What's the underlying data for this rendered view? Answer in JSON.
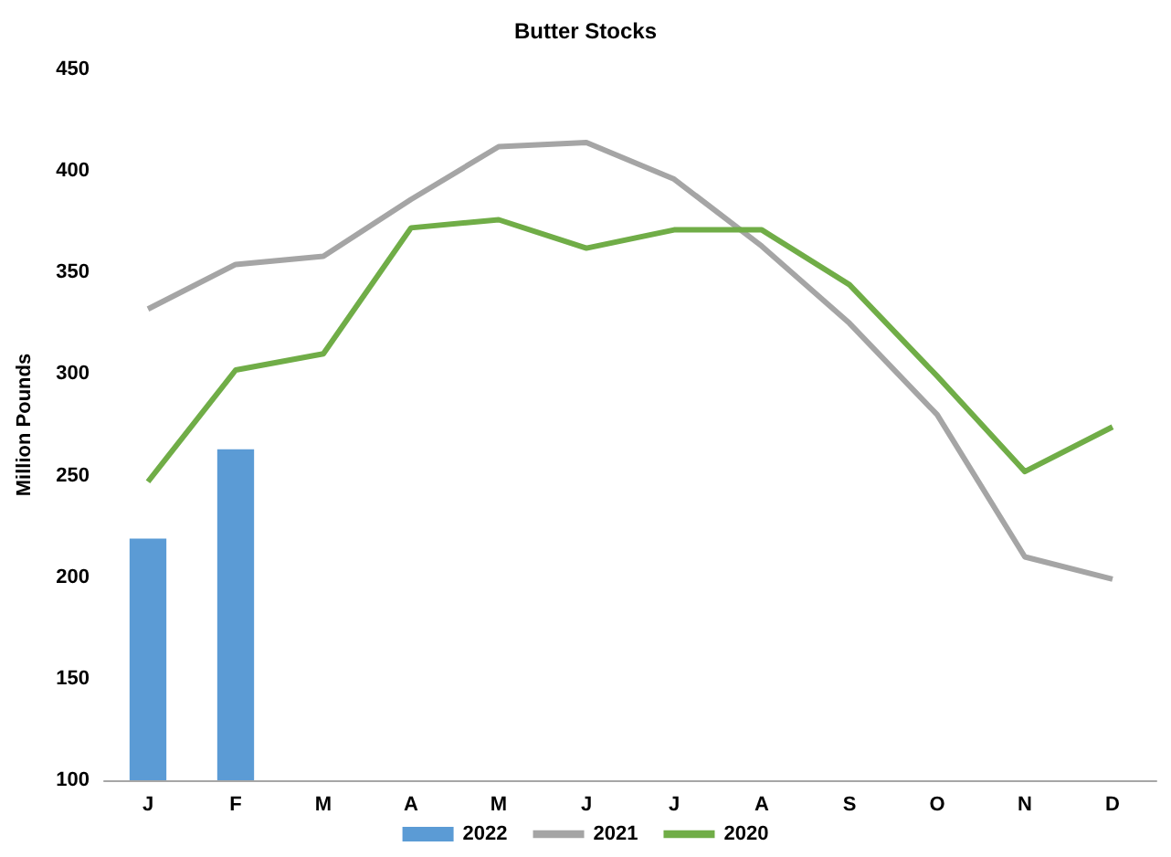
{
  "chart_data": {
    "type": "bar",
    "title": "Butter Stocks",
    "ylabel": "Million Pounds",
    "categories": [
      "J",
      "F",
      "M",
      "A",
      "M",
      "J",
      "J",
      "A",
      "S",
      "O",
      "N",
      "D"
    ],
    "series": [
      {
        "name": "2022",
        "color": "#5b9bd5",
        "values": [
          219,
          263,
          null,
          null,
          null,
          null,
          null,
          null,
          null,
          null,
          null,
          null
        ]
      },
      {
        "name": "2021",
        "type": "line",
        "color": "#a5a5a5",
        "values": [
          332,
          354,
          358,
          386,
          412,
          414,
          396,
          363,
          325,
          280,
          210,
          199
        ]
      },
      {
        "name": "2020",
        "type": "line",
        "color": "#70ad47",
        "values": [
          247,
          302,
          310,
          372,
          376,
          362,
          371,
          371,
          344,
          299,
          252,
          274
        ]
      }
    ],
    "ylim": [
      100,
      450
    ],
    "yticks": [
      100,
      150,
      200,
      250,
      300,
      350,
      400,
      450
    ],
    "grid": false,
    "legend": "bottom",
    "marker": "none",
    "line_style": "solid"
  }
}
